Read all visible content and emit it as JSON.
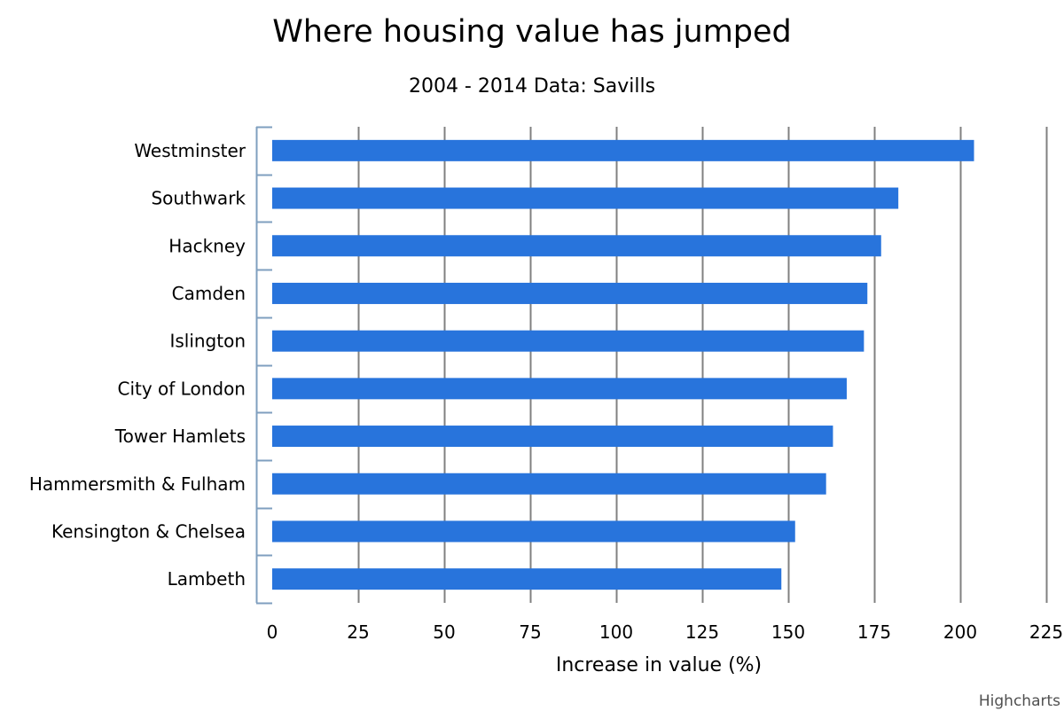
{
  "chart_data": {
    "type": "bar",
    "orientation": "horizontal",
    "title": "Where housing value has jumped",
    "subtitle": "2004 - 2014 Data: Savills",
    "categories": [
      "Westminster",
      "Southwark",
      "Hackney",
      "Camden",
      "Islington",
      "City of London",
      "Tower Hamlets",
      "Hammersmith & Fulham",
      "Kensington & Chelsea",
      "Lambeth"
    ],
    "values": [
      204,
      182,
      177,
      173,
      172,
      167,
      163,
      161,
      152,
      148
    ],
    "xlabel": "Increase in value (%)",
    "ylabel": "",
    "xlim": [
      0,
      225
    ],
    "ticks": [
      0,
      25,
      50,
      75,
      100,
      125,
      150,
      175,
      200,
      225
    ],
    "grid": true,
    "legend": "none",
    "bar_color": "#2874dc",
    "gridline_color": "#808080",
    "axis_color": "#7f9fbf",
    "credits": "Highcharts"
  }
}
